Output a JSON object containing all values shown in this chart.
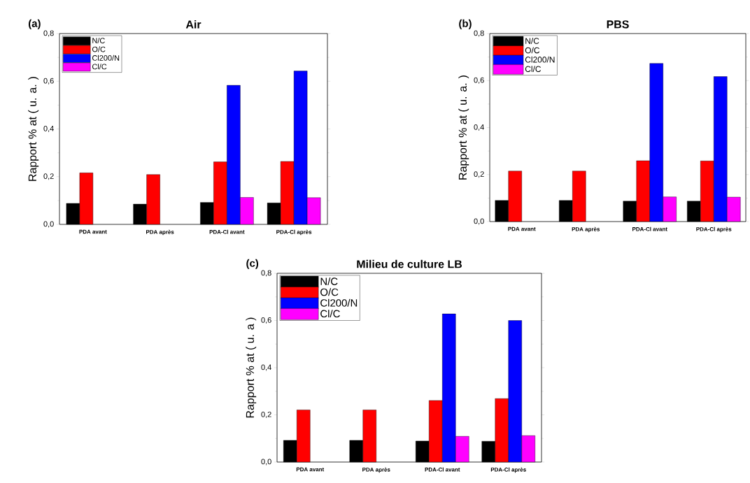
{
  "chart_data": [
    {
      "type": "bar",
      "title": "Air",
      "ylabel": "Rapport % at  ( u. a. )",
      "annotations": [
        "(a)"
      ],
      "categories": [
        "PDA avant",
        "PDA après",
        "PDA-Cl avant",
        "PDA-Cl après"
      ],
      "legend": "top left",
      "ylim": [
        0,
        0.8
      ],
      "yticks": [
        {
          "value": 0,
          "label": "0,0"
        },
        {
          "value": 0.2,
          "label": "0,2"
        },
        {
          "value": 0.4,
          "label": "0,4"
        },
        {
          "value": 0.6,
          "label": "0,6"
        },
        {
          "value": 0.8,
          "label": "0,8"
        }
      ],
      "series": [
        {
          "name": "N/C",
          "color": "#000000",
          "values": [
            0.088,
            0.085,
            0.092,
            0.09
          ]
        },
        {
          "name": "O/C",
          "color": "#ff0000",
          "values": [
            0.216,
            0.209,
            0.262,
            0.264
          ]
        },
        {
          "name": "Cl200/N",
          "color": "#0000ff",
          "values": [
            null,
            null,
            0.583,
            0.643
          ]
        },
        {
          "name": "Cl/C",
          "color": "#ff00ff",
          "values": [
            null,
            null,
            0.113,
            0.112
          ]
        }
      ]
    },
    {
      "type": "bar",
      "title": "PBS",
      "ylabel": "Rapport % at ( u. a. )",
      "annotations": [
        "(b)"
      ],
      "categories": [
        "PDA avant",
        "PDA après",
        "PDA-Cl avant",
        "PDA-Cl après"
      ],
      "legend": "top left",
      "ylim": [
        0,
        0.8
      ],
      "yticks": [
        {
          "value": 0,
          "label": "0,0"
        },
        {
          "value": 0.2,
          "label": "0,2"
        },
        {
          "value": 0.4,
          "label": "0,4"
        },
        {
          "value": 0.6,
          "label": "0,6"
        },
        {
          "value": 0.8,
          "label": "0,8"
        }
      ],
      "series": [
        {
          "name": "N/C",
          "color": "#000000",
          "values": [
            0.09,
            0.09,
            0.087,
            0.087
          ]
        },
        {
          "name": "O/C",
          "color": "#ff0000",
          "values": [
            0.215,
            0.215,
            0.259,
            0.258
          ]
        },
        {
          "name": "Cl200/N",
          "color": "#0000ff",
          "values": [
            null,
            null,
            0.673,
            0.617
          ]
        },
        {
          "name": "Cl/C",
          "color": "#ff00ff",
          "values": [
            null,
            null,
            0.105,
            0.104
          ]
        }
      ]
    },
    {
      "type": "bar",
      "title": "Milieu de culture LB",
      "ylabel": "Rapport % at ( u. a )",
      "annotations": [
        "(c)"
      ],
      "categories": [
        "PDA avant",
        "PDA après",
        "PDA-Cl avant",
        "PDA-Cl après"
      ],
      "legend": "top left",
      "ylim": [
        0,
        0.8
      ],
      "yticks": [
        {
          "value": 0,
          "label": "0,0"
        },
        {
          "value": 0.2,
          "label": "0,2"
        },
        {
          "value": 0.4,
          "label": "0,4"
        },
        {
          "value": 0.6,
          "label": "0,6"
        },
        {
          "value": 0.8,
          "label": "0,8"
        }
      ],
      "series": [
        {
          "name": "N/C",
          "color": "#000000",
          "values": [
            0.092,
            0.092,
            0.089,
            0.088
          ]
        },
        {
          "name": "O/C",
          "color": "#ff0000",
          "values": [
            0.221,
            0.221,
            0.261,
            0.269
          ]
        },
        {
          "name": "Cl200/N",
          "color": "#0000ff",
          "values": [
            null,
            null,
            0.628,
            0.6
          ]
        },
        {
          "name": "Cl/C",
          "color": "#ff00ff",
          "values": [
            null,
            null,
            0.109,
            0.112
          ]
        }
      ]
    }
  ]
}
